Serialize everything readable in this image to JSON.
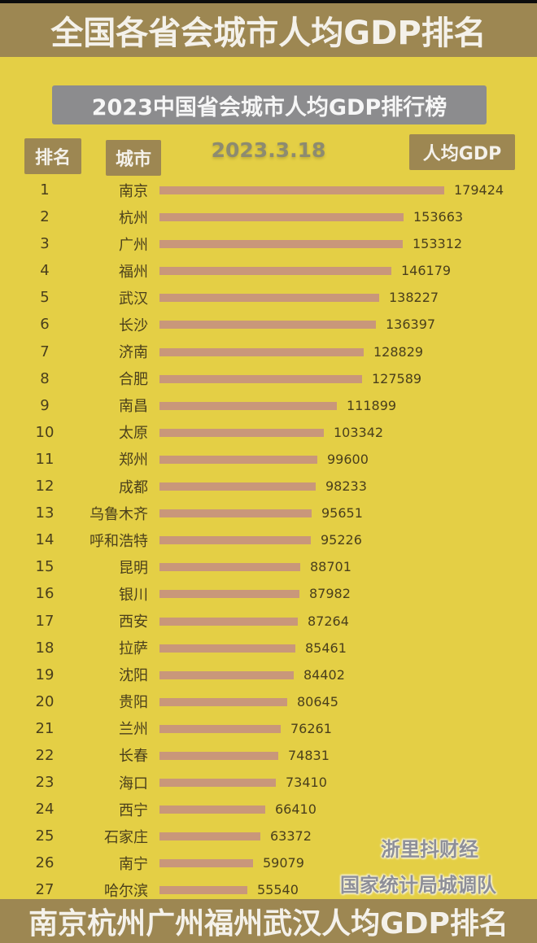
{
  "top_banner": {
    "title": "全国各省会城市人均GDP排名"
  },
  "subtitle": "2023中国省会城市人均GDP排行榜",
  "date": "2023.3.18",
  "headers": {
    "rank": "排名",
    "city": "城市",
    "value": "人均GDP"
  },
  "colors": {
    "background": "#e4cf45",
    "banner": "#9d8752",
    "subtitle_box": "#8c8c8e",
    "bar": "#c9977a",
    "text": "#4a3f1c"
  },
  "watermarks": [
    "浙里抖财经",
    "国家统计局城调队"
  ],
  "bottom_banner": {
    "title": "南京杭州广州福州武汉人均GDP排名"
  },
  "chart_data": {
    "type": "bar",
    "orientation": "horizontal",
    "title": "2023中国省会城市人均GDP排行榜",
    "subtitle": "2023.3.18",
    "xlabel": "人均GDP",
    "ylabel": "城市",
    "categories": [
      "南京",
      "杭州",
      "广州",
      "福州",
      "武汉",
      "长沙",
      "济南",
      "合肥",
      "南昌",
      "太原",
      "郑州",
      "成都",
      "乌鲁木齐",
      "呼和浩特",
      "昆明",
      "银川",
      "西安",
      "拉萨",
      "沈阳",
      "贵阳",
      "兰州",
      "长春",
      "海口",
      "西宁",
      "石家庄",
      "南宁",
      "哈尔滨"
    ],
    "ranks": [
      1,
      2,
      3,
      4,
      5,
      6,
      7,
      8,
      9,
      10,
      11,
      12,
      13,
      14,
      15,
      16,
      17,
      18,
      19,
      20,
      21,
      22,
      23,
      24,
      25,
      26,
      27
    ],
    "values": [
      179424,
      153663,
      153312,
      146179,
      138227,
      136397,
      128829,
      127589,
      111899,
      103342,
      99600,
      98233,
      95651,
      95226,
      88701,
      87982,
      87264,
      85461,
      84402,
      80645,
      76261,
      74831,
      73410,
      66410,
      63372,
      59079,
      55540
    ],
    "grid": false,
    "legend": null,
    "source": "国家统计局城调队"
  }
}
